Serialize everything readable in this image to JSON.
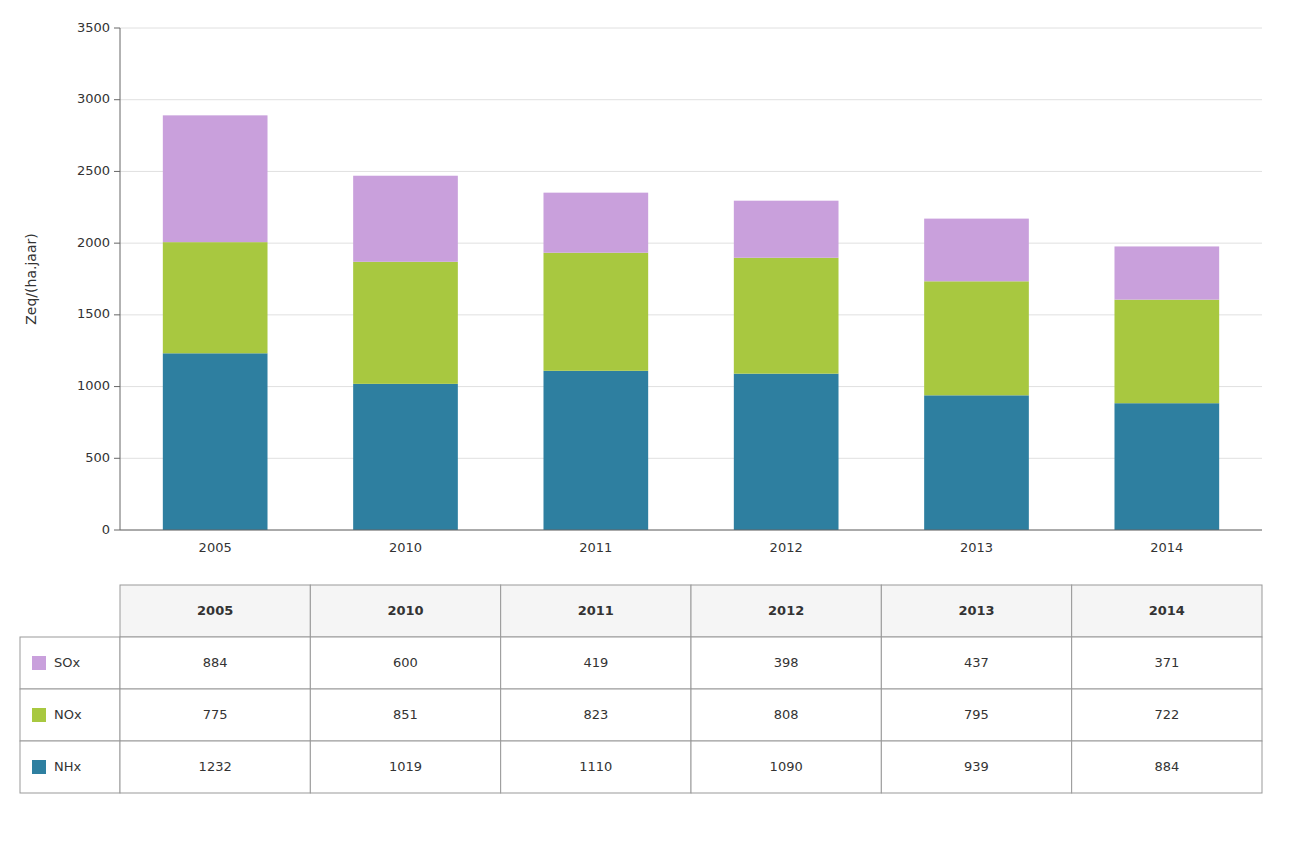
{
  "chart_data": {
    "type": "bar",
    "stacked": true,
    "categories": [
      "2005",
      "2010",
      "2011",
      "2012",
      "2013",
      "2014"
    ],
    "series": [
      {
        "name": "NHx",
        "color": "#2e7fa0",
        "values": [
          1232,
          1019,
          1110,
          1090,
          939,
          884
        ]
      },
      {
        "name": "NOx",
        "color": "#a8c840",
        "values": [
          775,
          851,
          823,
          808,
          795,
          722
        ]
      },
      {
        "name": "SOx",
        "color": "#c9a0dc",
        "values": [
          884,
          600,
          419,
          398,
          437,
          371
        ]
      }
    ],
    "ylabel": "Zeq/(ha.jaar)",
    "ylim": [
      0,
      3500
    ],
    "yticks": [
      0,
      500,
      1000,
      1500,
      2000,
      2500,
      3000,
      3500
    ],
    "grid": true
  }
}
